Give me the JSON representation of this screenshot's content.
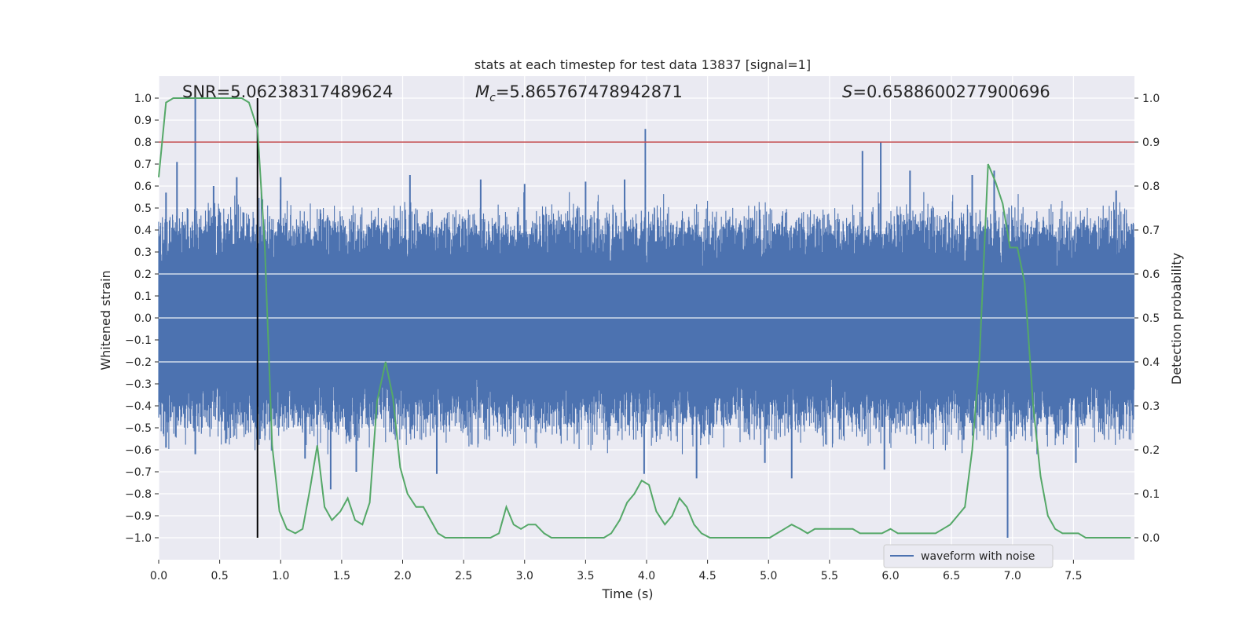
{
  "chart_data": {
    "type": "line",
    "title": "stats at each timestep for test data 13837 [signal=1]",
    "xlabel": "Time (s)",
    "ylabel_left": "Whitened strain",
    "ylabel_right": "Detection probability",
    "xlim": [
      0.0,
      8.0
    ],
    "ylim_left": [
      -1.1,
      1.1
    ],
    "ylim_right": [
      -0.05,
      1.05
    ],
    "xticks": [
      0.0,
      0.5,
      1.0,
      1.5,
      2.0,
      2.5,
      3.0,
      3.5,
      4.0,
      4.5,
      5.0,
      5.5,
      6.0,
      6.5,
      7.0,
      7.5
    ],
    "xtick_labels": [
      "0.0",
      "0.5",
      "1.0",
      "1.5",
      "2.0",
      "2.5",
      "3.0",
      "3.5",
      "4.0",
      "4.5",
      "5.0",
      "5.5",
      "6.0",
      "6.5",
      "7.0",
      "7.5"
    ],
    "yticks_left": [
      1.0,
      0.9,
      0.8,
      0.7,
      0.6,
      0.5,
      0.4,
      0.3,
      0.2,
      0.1,
      0.0,
      -0.1,
      -0.2,
      -0.3,
      -0.4,
      -0.5,
      -0.6,
      -0.7,
      -0.8,
      -0.9,
      -1.0
    ],
    "ytick_labels_left": [
      "1.0",
      "0.9",
      "0.8",
      "0.7",
      "0.6",
      "0.5",
      "0.4",
      "0.3",
      "0.2",
      "0.1",
      "0.0",
      "−0.1",
      "−0.2",
      "−0.3",
      "−0.4",
      "−0.5",
      "−0.6",
      "−0.7",
      "−0.8",
      "−0.9",
      "−1.0"
    ],
    "yticks_right": [
      1.0,
      0.9,
      0.8,
      0.7,
      0.6,
      0.5,
      0.4,
      0.3,
      0.2,
      0.1,
      0.0
    ],
    "ytick_labels_right": [
      "1.0",
      "0.9",
      "0.8",
      "0.7",
      "0.6",
      "0.5",
      "0.4",
      "0.3",
      "0.2",
      "0.1",
      "0.0"
    ],
    "annotations": {
      "snr": "SNR=5.06238317489624",
      "mc_symbol": "M",
      "mc_sub": "c",
      "mc_value": "=5.865767478942871",
      "s_symbol": "S",
      "s_value": "=0.6588600277900696"
    },
    "legend": {
      "label": "waveform with noise",
      "placement": "lower-right"
    },
    "threshold": {
      "axis": "right",
      "value": 0.9,
      "color": "#c44e52"
    },
    "marker_time": 0.81,
    "waveform": {
      "name": "waveform with noise",
      "color": "#4c72b0",
      "typical_envelope": [
        -0.42,
        0.38
      ],
      "spikes": [
        {
          "t": 0.06,
          "v": 0.57
        },
        {
          "t": 0.15,
          "v": 0.71
        },
        {
          "t": 0.3,
          "v": 1.0
        },
        {
          "t": 0.3,
          "v": -0.62
        },
        {
          "t": 0.45,
          "v": 0.6
        },
        {
          "t": 0.64,
          "v": 0.64
        },
        {
          "t": 0.06,
          "v": -0.59
        },
        {
          "t": 0.55,
          "v": -0.57
        },
        {
          "t": 0.83,
          "v": -0.55
        },
        {
          "t": 1.0,
          "v": 0.64
        },
        {
          "t": 1.2,
          "v": -0.64
        },
        {
          "t": 1.41,
          "v": -0.78
        },
        {
          "t": 1.62,
          "v": -0.7
        },
        {
          "t": 2.06,
          "v": 0.65
        },
        {
          "t": 2.28,
          "v": -0.71
        },
        {
          "t": 2.64,
          "v": 0.63
        },
        {
          "t": 3.0,
          "v": 0.61
        },
        {
          "t": 3.5,
          "v": 0.62
        },
        {
          "t": 3.82,
          "v": 0.63
        },
        {
          "t": 3.98,
          "v": -0.71
        },
        {
          "t": 3.99,
          "v": 0.86
        },
        {
          "t": 4.41,
          "v": -0.73
        },
        {
          "t": 4.97,
          "v": -0.66
        },
        {
          "t": 5.19,
          "v": -0.73
        },
        {
          "t": 5.77,
          "v": 0.76
        },
        {
          "t": 5.92,
          "v": 0.8
        },
        {
          "t": 5.95,
          "v": -0.69
        },
        {
          "t": 6.16,
          "v": 0.67
        },
        {
          "t": 6.67,
          "v": 0.65
        },
        {
          "t": 6.85,
          "v": 0.67
        },
        {
          "t": 6.96,
          "v": -1.0
        },
        {
          "t": 7.52,
          "v": -0.66
        },
        {
          "t": 7.85,
          "v": 0.58
        }
      ]
    },
    "probability": {
      "name": "detection probability",
      "color": "#55a868",
      "x": [
        0.0,
        0.06,
        0.12,
        0.18,
        0.25,
        0.31,
        0.37,
        0.43,
        0.5,
        0.56,
        0.62,
        0.68,
        0.74,
        0.81,
        0.87,
        0.93,
        0.99,
        1.05,
        1.12,
        1.18,
        1.24,
        1.3,
        1.36,
        1.42,
        1.49,
        1.55,
        1.61,
        1.67,
        1.73,
        1.79,
        1.86,
        1.92,
        1.98,
        2.04,
        2.11,
        2.17,
        2.23,
        2.29,
        2.35,
        2.42,
        2.48,
        2.54,
        2.6,
        2.66,
        2.72,
        2.79,
        2.85,
        2.91,
        2.97,
        3.03,
        3.09,
        3.16,
        3.22,
        3.28,
        3.34,
        3.4,
        3.47,
        3.53,
        3.59,
        3.65,
        3.71,
        3.78,
        3.84,
        3.9,
        3.96,
        4.02,
        4.08,
        4.15,
        4.21,
        4.27,
        4.33,
        4.39,
        4.45,
        4.52,
        4.58,
        4.64,
        4.7,
        4.76,
        4.82,
        4.89,
        4.95,
        5.01,
        5.07,
        5.13,
        5.19,
        5.26,
        5.32,
        5.38,
        5.44,
        5.5,
        5.56,
        5.63,
        5.69,
        5.75,
        5.81,
        5.87,
        5.93,
        6.0,
        6.06,
        6.12,
        6.18,
        6.24,
        6.3,
        6.37,
        6.43,
        6.49,
        6.55,
        6.61,
        6.67,
        6.73,
        6.8,
        6.86,
        6.92,
        6.98,
        7.04,
        7.1,
        7.17,
        7.23,
        7.29,
        7.35,
        7.41,
        7.47,
        7.54,
        7.6,
        7.66,
        7.72,
        7.78,
        7.84,
        7.91,
        7.97
      ],
      "y": [
        0.82,
        0.99,
        1.0,
        1.0,
        1.0,
        1.0,
        1.0,
        1.0,
        1.0,
        1.0,
        1.0,
        1.0,
        0.99,
        0.93,
        0.66,
        0.21,
        0.06,
        0.02,
        0.01,
        0.02,
        0.11,
        0.21,
        0.07,
        0.04,
        0.06,
        0.09,
        0.04,
        0.03,
        0.08,
        0.31,
        0.4,
        0.32,
        0.16,
        0.1,
        0.07,
        0.07,
        0.04,
        0.01,
        0.0,
        0.0,
        0.0,
        0.0,
        0.0,
        0.0,
        0.0,
        0.01,
        0.07,
        0.03,
        0.02,
        0.03,
        0.03,
        0.01,
        0.0,
        0.0,
        0.0,
        0.0,
        0.0,
        0.0,
        0.0,
        0.0,
        0.01,
        0.04,
        0.08,
        0.1,
        0.13,
        0.12,
        0.06,
        0.03,
        0.05,
        0.09,
        0.07,
        0.03,
        0.01,
        0.0,
        0.0,
        0.0,
        0.0,
        0.0,
        0.0,
        0.0,
        0.0,
        0.0,
        0.01,
        0.02,
        0.03,
        0.02,
        0.01,
        0.02,
        0.02,
        0.02,
        0.02,
        0.02,
        0.02,
        0.01,
        0.01,
        0.01,
        0.01,
        0.02,
        0.01,
        0.01,
        0.01,
        0.01,
        0.01,
        0.01,
        0.02,
        0.03,
        0.05,
        0.07,
        0.2,
        0.41,
        0.85,
        0.81,
        0.76,
        0.66,
        0.66,
        0.58,
        0.3,
        0.14,
        0.05,
        0.02,
        0.01,
        0.01,
        0.01,
        0.0,
        0.0,
        0.0,
        0.0,
        0.0,
        0.0,
        0.0
      ]
    }
  }
}
